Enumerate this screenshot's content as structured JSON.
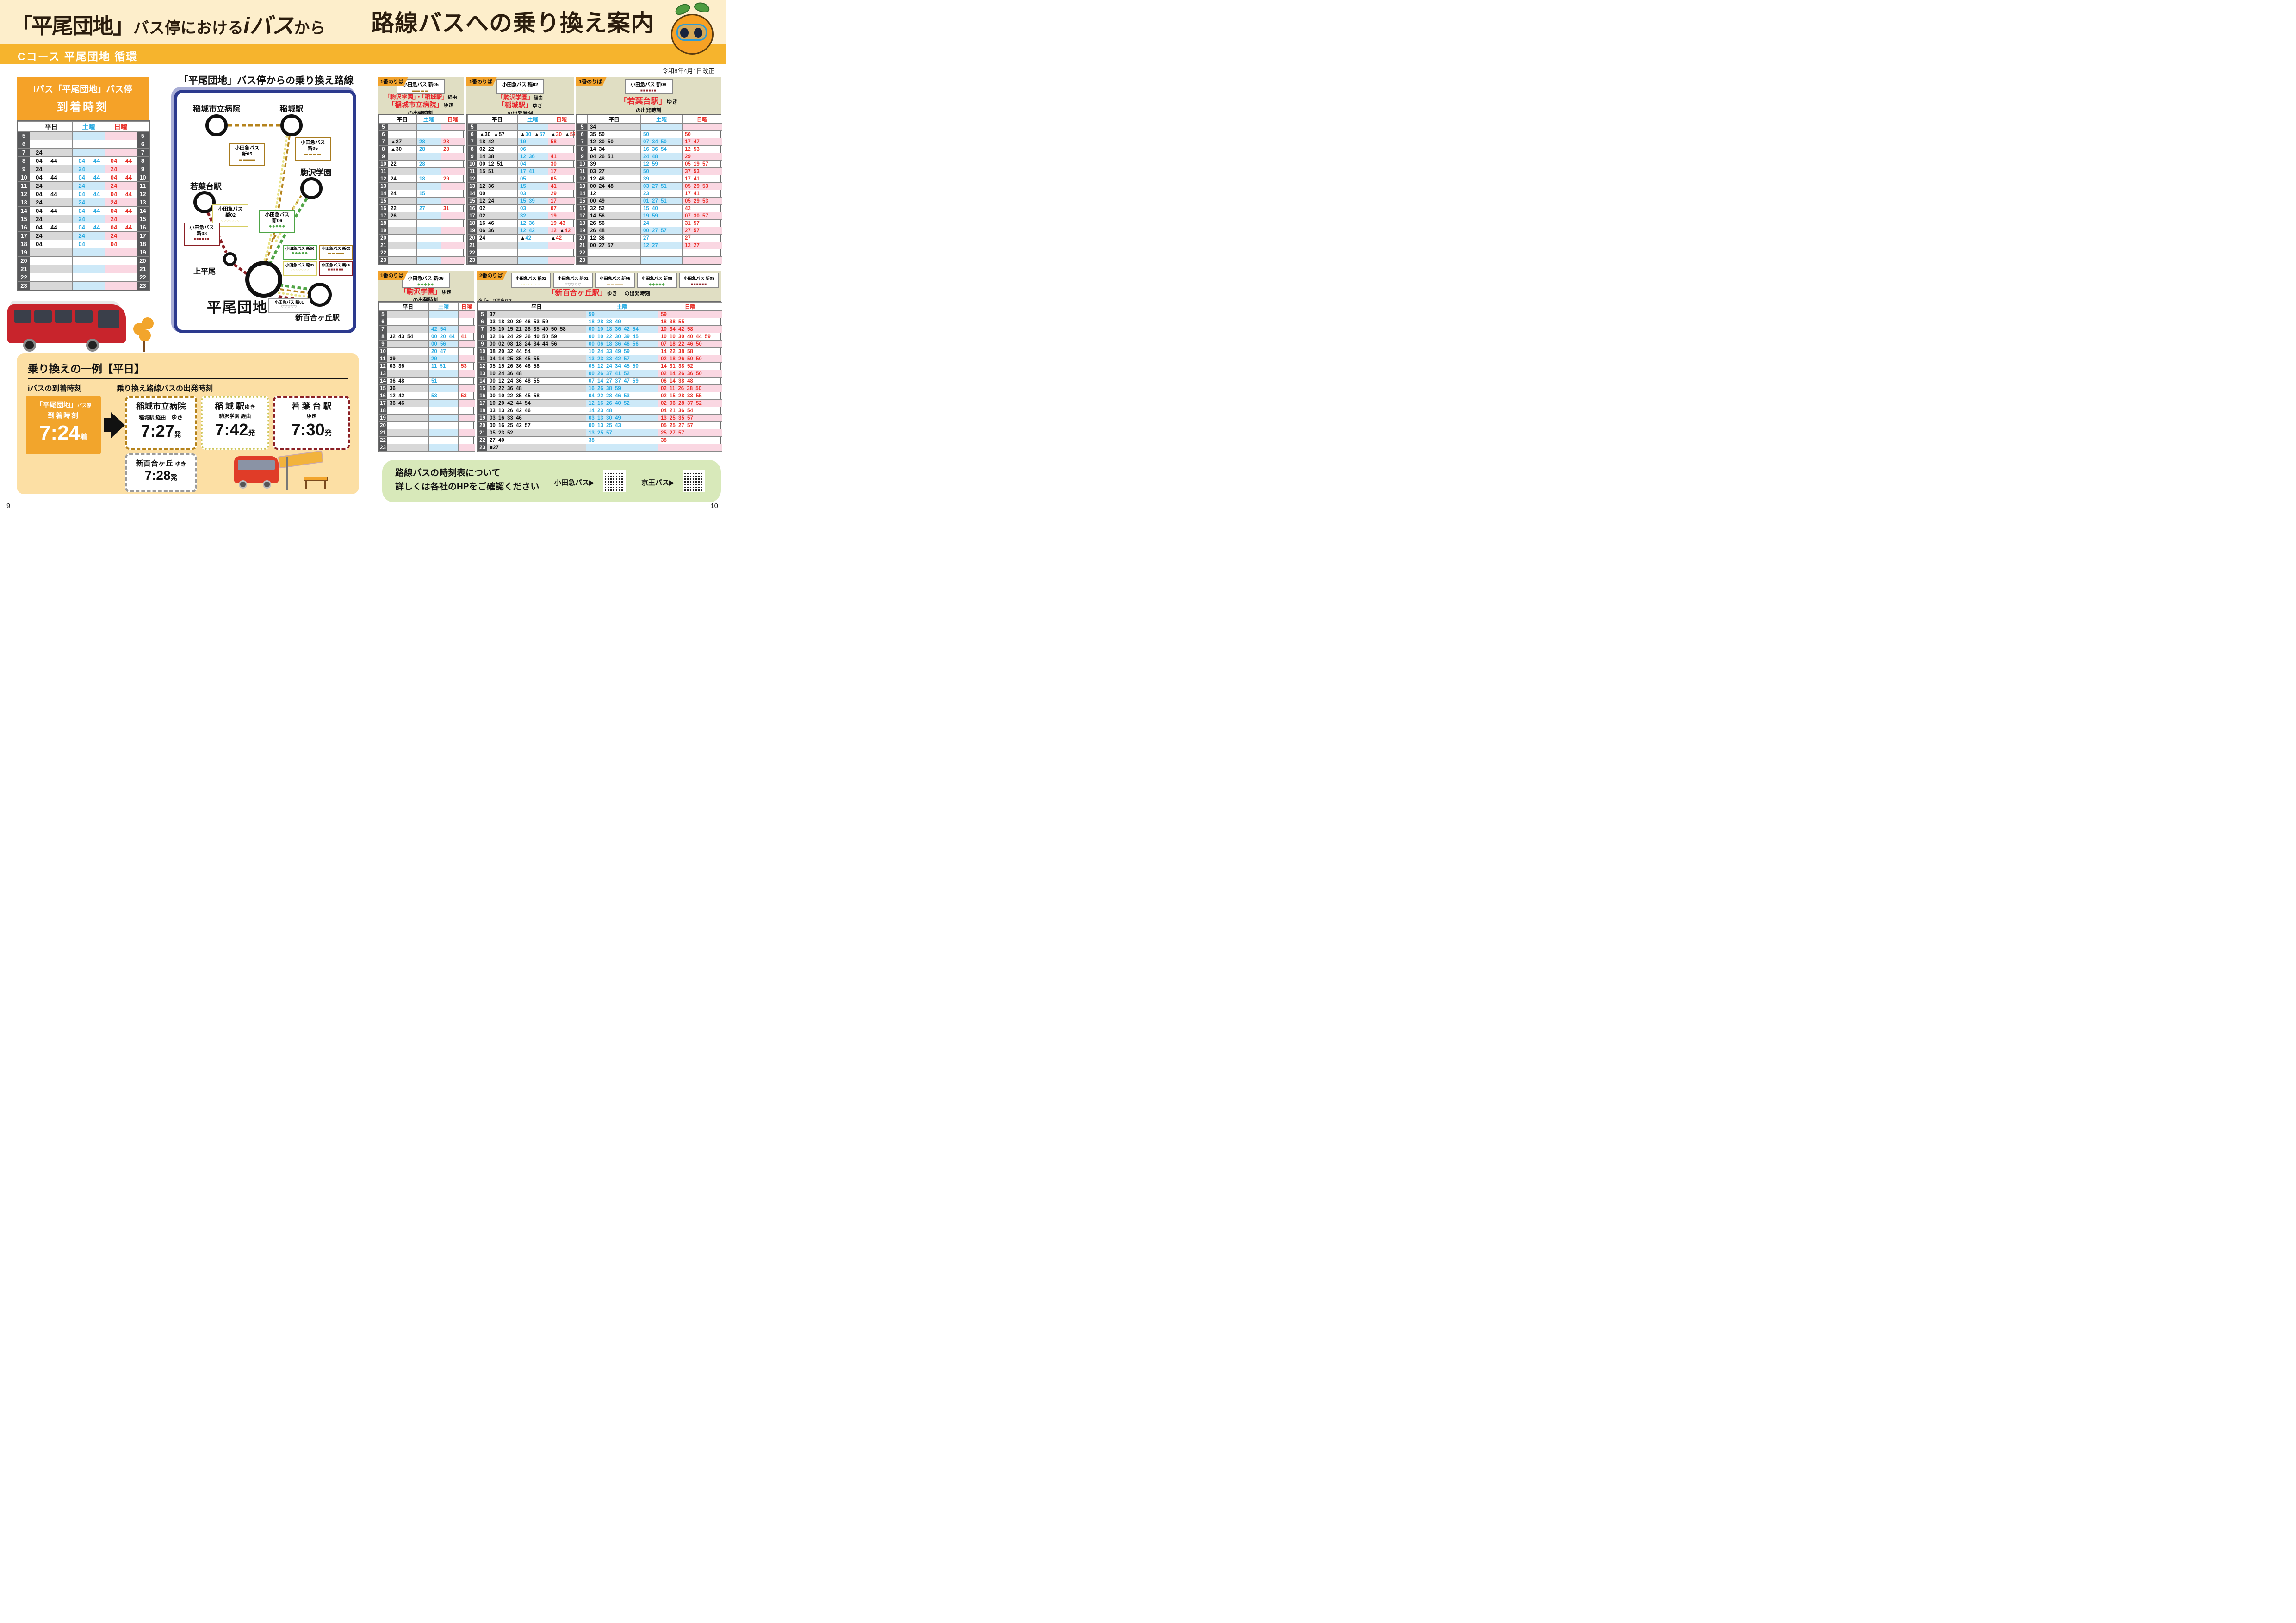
{
  "page": {
    "title_left_q": "「平尾団地」",
    "title_left_mid": "バス停における",
    "title_left_i": "iバス",
    "title_left_suffix": "から",
    "title_right": "路線バスへの乗り換え案内",
    "course_band": "Cコース 平尾団地 循環",
    "revision": "令和8年4月1日改正",
    "page_left": "9",
    "page_right": "10"
  },
  "day_headers": {
    "weekday": "平日",
    "saturday": "土曜",
    "sunday": "日曜"
  },
  "hours": [
    5,
    6,
    7,
    8,
    9,
    10,
    11,
    12,
    13,
    14,
    15,
    16,
    17,
    18,
    19,
    20,
    21,
    22,
    23
  ],
  "route_patterns": {
    "shin05": {
      "glyph": "▬▬▬▬",
      "color": "#a87b1e"
    },
    "ina02": {
      "glyph": "○○○○○○○",
      "color": "#ddd46a"
    },
    "shin06": {
      "glyph": "◆◆◆◆◆",
      "color": "#4ea546"
    },
    "shin08": {
      "glyph": "■■■■■■",
      "color": "#8b1f24"
    },
    "shin01": {
      "glyph": "▽▽▽▽▽",
      "color": "#9b9b9b"
    }
  },
  "ibus": {
    "title1": "iバス「平尾団地」バス停",
    "title2": "到着時刻",
    "rows": [
      [
        "",
        "",
        ""
      ],
      [
        "",
        "",
        ""
      ],
      [
        "24",
        "",
        ""
      ],
      [
        "04 44",
        "04 44",
        "04 44"
      ],
      [
        "24",
        "24",
        "24"
      ],
      [
        "04 44",
        "04 44",
        "04 44"
      ],
      [
        "24",
        "24",
        "24"
      ],
      [
        "04 44",
        "04 44",
        "04 44"
      ],
      [
        "24",
        "24",
        "24"
      ],
      [
        "04 44",
        "04 44",
        "04 44"
      ],
      [
        "24",
        "24",
        "24"
      ],
      [
        "04 44",
        "04 44",
        "04 44"
      ],
      [
        "24",
        "24",
        "24"
      ],
      [
        "04",
        "04",
        "04"
      ],
      [
        "",
        "",
        ""
      ],
      [
        "",
        "",
        ""
      ],
      [
        "",
        "",
        ""
      ],
      [
        "",
        "",
        ""
      ],
      [
        "",
        "",
        ""
      ]
    ]
  },
  "map": {
    "title": "「平尾団地」バス停からの乗り換え路線",
    "stations": [
      "稲城市立病院",
      "稲城駅",
      "駒沢学園",
      "若葉台駅",
      "上平尾",
      "平尾団地",
      "新百合ヶ丘駅"
    ],
    "legend": [
      {
        "operator": "小田急バス",
        "code": "新05"
      },
      {
        "operator": "小田急バス",
        "code": "新05"
      },
      {
        "operator": "小田急バス",
        "code": "稲02"
      },
      {
        "operator": "小田急バス",
        "code": "新06"
      },
      {
        "operator": "小田急バス",
        "code": "新08"
      },
      {
        "operator": "小田急バス 新06",
        "code": ""
      },
      {
        "operator": "小田急バス 新05",
        "code": ""
      },
      {
        "operator": "小田急バス 稲02",
        "code": ""
      },
      {
        "operator": "小田急バス 新08",
        "code": ""
      },
      {
        "operator": "小田急バス 新01",
        "code": ""
      }
    ]
  },
  "timetables": [
    {
      "platform": "1番のりば",
      "routes": [
        {
          "label": "小田急バス 新05",
          "pattern": "shin05"
        }
      ],
      "dest1_red": "「駒沢学園」・「稲城駅」",
      "dest1_blk": "経由",
      "dest2_red": "「稲城市立病院」",
      "dest2_blk": "ゆき",
      "suffix": "の出発時刻",
      "note": "※「▲」は駒沢学園を経由しません",
      "rows": [
        [
          "",
          "",
          ""
        ],
        [
          "",
          "",
          ""
        ],
        [
          "▲27",
          "28",
          "28"
        ],
        [
          "▲30",
          "28",
          "28"
        ],
        [
          "",
          "",
          ""
        ],
        [
          "22",
          "28",
          ""
        ],
        [
          "",
          "",
          ""
        ],
        [
          "24",
          "18",
          "29"
        ],
        [
          "",
          "",
          ""
        ],
        [
          "24",
          "15",
          ""
        ],
        [
          "",
          "",
          ""
        ],
        [
          "22",
          "27",
          "31"
        ],
        [
          "26",
          "",
          ""
        ],
        [
          "",
          "",
          ""
        ],
        [
          "",
          "",
          ""
        ],
        [
          "",
          "",
          ""
        ],
        [
          "",
          "",
          ""
        ],
        [
          "",
          "",
          ""
        ],
        [
          "",
          "",
          ""
        ]
      ]
    },
    {
      "platform": "1番のりば",
      "routes": [
        {
          "label": "小田急バス 稲02",
          "pattern": "ina02"
        }
      ],
      "dest1_red": "「駒沢学園」",
      "dest1_blk": "経由",
      "dest2_red": "「稲城駅」",
      "dest2_blk": "ゆき",
      "suffix": "の出発時刻",
      "note": "※「▲」は駒沢学園を経由しません",
      "rows": [
        [
          "",
          "",
          ""
        ],
        [
          "▲30 ▲57",
          "▲30 ▲57",
          "▲30 ▲57"
        ],
        [
          "18 42",
          "19",
          "58"
        ],
        [
          "02 22",
          "06",
          ""
        ],
        [
          "14 38",
          "12 36",
          "41"
        ],
        [
          "00 12 51",
          "04",
          "30"
        ],
        [
          "15 51",
          "17 41",
          "17"
        ],
        [
          "",
          "05",
          "05"
        ],
        [
          "12 36",
          "15",
          "41"
        ],
        [
          "00",
          "03",
          "29"
        ],
        [
          "12 24",
          "15 39",
          "17"
        ],
        [
          "02",
          "03",
          "07"
        ],
        [
          "02",
          "32",
          "19"
        ],
        [
          "16 46",
          "12 36",
          "19 43"
        ],
        [
          "06 36",
          "12 42",
          "12 ▲42"
        ],
        [
          "24",
          "▲42",
          "▲42"
        ],
        [
          "",
          "",
          ""
        ],
        [
          "",
          "",
          ""
        ],
        [
          "",
          "",
          ""
        ]
      ]
    },
    {
      "platform": "1番のりば",
      "routes": [
        {
          "label": "小田急バス 新08",
          "pattern": "shin08"
        }
      ],
      "dest1_red": "「若葉台駅」",
      "dest1_blk": "ゆき",
      "dest2_red": "",
      "dest2_blk": "",
      "suffix": "の出発時刻",
      "note": "",
      "rows": [
        [
          "34",
          "",
          ""
        ],
        [
          "35 50",
          "50",
          "50"
        ],
        [
          "12 30 50",
          "07 34 50",
          "17 47"
        ],
        [
          "14 34",
          "16 36 54",
          "12 53"
        ],
        [
          "04 26 51",
          "24 48",
          "29"
        ],
        [
          "39",
          "12 59",
          "05 19 57"
        ],
        [
          "03 27",
          "50",
          "37 53"
        ],
        [
          "12 48",
          "39",
          "17 41"
        ],
        [
          "00 24 48",
          "03 27 51",
          "05 29 53"
        ],
        [
          "12",
          "23",
          "17 41"
        ],
        [
          "00 49",
          "01 27 51",
          "05 29 53"
        ],
        [
          "32 52",
          "15 40",
          "42"
        ],
        [
          "14 56",
          "19 59",
          "07 30 57"
        ],
        [
          "26 56",
          "24",
          "31 57"
        ],
        [
          "26 48",
          "00 27 57",
          "27 57"
        ],
        [
          "12 36",
          "27",
          "27"
        ],
        [
          "00 27 57",
          "12 27",
          "12 27"
        ],
        [
          "",
          "",
          ""
        ],
        [
          "",
          "",
          ""
        ]
      ]
    },
    {
      "platform": "1番のりば",
      "routes": [
        {
          "label": "小田急バス 新06",
          "pattern": "shin06"
        }
      ],
      "dest1_red": "「駒沢学園」",
      "dest1_blk": "ゆき",
      "dest2_red": "",
      "dest2_blk": "",
      "suffix": "の出発時刻",
      "note": "",
      "rows": [
        [
          "",
          "",
          ""
        ],
        [
          "",
          "",
          ""
        ],
        [
          "",
          "42 54",
          ""
        ],
        [
          "32 43 54",
          "00 20 44",
          "41"
        ],
        [
          "",
          "00 56",
          ""
        ],
        [
          "",
          "20 47",
          ""
        ],
        [
          "39",
          "29",
          ""
        ],
        [
          "03 36",
          "11 51",
          "53"
        ],
        [
          "",
          "",
          ""
        ],
        [
          "36 48",
          "51",
          ""
        ],
        [
          "36",
          "",
          ""
        ],
        [
          "12 42",
          "53",
          "53"
        ],
        [
          "36 46",
          "",
          ""
        ],
        [
          "",
          "",
          ""
        ],
        [
          "",
          "",
          ""
        ],
        [
          "",
          "",
          ""
        ],
        [
          "",
          "",
          ""
        ],
        [
          "",
          "",
          ""
        ],
        [
          "",
          "",
          ""
        ]
      ]
    },
    {
      "platform": "2番のりば",
      "routes": [
        {
          "label": "小田急バス 稲02",
          "pattern": "ina02"
        },
        {
          "label": "小田急バス 新01",
          "pattern": "shin01"
        },
        {
          "label": "小田急バス 新05",
          "pattern": "shin05"
        },
        {
          "label": "小田急バス 新06",
          "pattern": "shin06"
        },
        {
          "label": "小田急バス 新08",
          "pattern": "shin08"
        }
      ],
      "dest1_red": "「新百合ヶ丘駅」",
      "dest1_blk": "ゆき",
      "dest2_red": "",
      "dest2_blk": "",
      "suffix": "の出発時刻",
      "note": "※「■」は深夜バス",
      "rows": [
        [
          "37",
          "59",
          "59"
        ],
        [
          "03 18 30 39 46 53 59",
          "18 28 38 49",
          "18 38 55"
        ],
        [
          "05 10 15 21 28 35 40 50 58",
          "00 10 18 36 42 54",
          "10 34 42 58"
        ],
        [
          "02 16 24 29 36 40 50 59",
          "00 10 22 30 39 45",
          "10 10 30 40 44 59"
        ],
        [
          "00 02 08 18 24 34 44 56",
          "00 06 18 36 46 56",
          "07 18 22 46 50"
        ],
        [
          "08 20 32 44 54",
          "10 24 33 49 59",
          "14 22 38 58"
        ],
        [
          "04 14 25 35 45 55",
          "13 23 33 42 57",
          "02 18 26 50 50"
        ],
        [
          "05 15 26 36 46 58",
          "05 12 24 34 45 50",
          "14 31 38 52"
        ],
        [
          "10 24 36 48",
          "00 26 37 41 52",
          "02 14 26 36 50"
        ],
        [
          "00 12 24 36 48 55",
          "07 14 27 37 47 59",
          "06 14 38 48"
        ],
        [
          "10 22 36 48",
          "16 26 38 59",
          "02 11 26 38 50"
        ],
        [
          "00 10 22 35 45 58",
          "04 22 28 46 53",
          "02 15 28 33 55"
        ],
        [
          "10 20 42 44 54",
          "12 16 26 40 52",
          "02 06 28 37 52"
        ],
        [
          "03 13 26 42 46",
          "14 23 48",
          "04 21 36 54"
        ],
        [
          "03 16 33 46",
          "03 13 30 49",
          "13 25 35 57"
        ],
        [
          "00 16 25 42 57",
          "00 13 25 43",
          "05 25 27 57"
        ],
        [
          "05 23 52",
          "13 25 57",
          "25 27 57"
        ],
        [
          "27 40",
          "38",
          "38"
        ],
        [
          "■27",
          "",
          ""
        ]
      ]
    }
  ],
  "example": {
    "title": "乗り換えの一例【平日】",
    "arrival_label": "iバスの到着時刻",
    "departure_label": "乗り換え路線バスの出発時刻",
    "arrival_line1": "「平尾団地」",
    "arrival_line1_small": "バス停",
    "arrival_line2": "到着時刻",
    "arrival_time": "7:24",
    "arrival_time_suffix": "着",
    "dep1_name": "稲城市立病院",
    "dep1_via": "稲城駅 経由",
    "dep1_yuki": "ゆき",
    "dep1_time": "7:27",
    "dep1_suffix": "発",
    "dep2_name": "稲 城 駅",
    "dep2_yuki": "ゆき",
    "dep2_via": "駒沢学園 経由",
    "dep2_time": "7:42",
    "dep2_suffix": "発",
    "dep3_name": "若 葉 台 駅",
    "dep3_yuki": "ゆき",
    "dep3_time": "7:30",
    "dep3_suffix": "発",
    "dep4_name": "新百合ヶ丘",
    "dep4_yuki": "ゆき",
    "dep4_time": "7:28",
    "dep4_suffix": "発"
  },
  "footer": {
    "line1": "路線バスの時刻表について",
    "line2": "詳しくは各社のHPをご確認ください",
    "qr1_label": "小田急バス",
    "qr2_label": "京王バス",
    "arrow": "▶"
  }
}
